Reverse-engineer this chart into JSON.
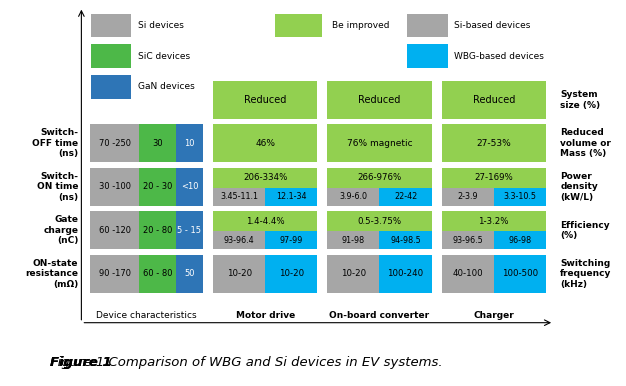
{
  "title_bold": "Figure 1",
  "title_italic": " Comparison of WBG and Si devices in EV systems.",
  "bg_color": "#ffffff",
  "colors": {
    "si_gray": "#a6a6a6",
    "sic_green": "#4db848",
    "gan_blue": "#2e75b6",
    "improved_green": "#92d050",
    "si_based_gray": "#a6a6a6",
    "wbg_blue": "#00b0f0"
  },
  "legend_left": [
    {
      "label": "Si devices",
      "color": "#a6a6a6"
    },
    {
      "label": "SiC devices",
      "color": "#4db848"
    },
    {
      "label": "GaN devices",
      "color": "#2e75b6"
    }
  ],
  "legend_mid": [
    {
      "label": "Be improved",
      "color": "#92d050"
    }
  ],
  "legend_right": [
    {
      "label": "Si-based devices",
      "color": "#a6a6a6"
    },
    {
      "label": "WBG-based devices",
      "color": "#00b0f0"
    }
  ],
  "row_labels": [
    "Switch-\nOFF time\n(ns)",
    "Switch-\nON time\n(ns)",
    "Gate\ncharge\n(nC)",
    "ON-state\nresistance\n(mΩ)"
  ],
  "col_labels": [
    "Device characteristics",
    "Motor drive",
    "On-board converter",
    "Charger"
  ],
  "right_labels": [
    "System\nsize (%)",
    "Reduced\nvolume or\nMass (%)",
    "Power\ndensity\n(kW/L)",
    "Efficiency\n(%)",
    "Switching\nfrequency\n(kHz)"
  ],
  "device_rows": [
    {
      "si": "70 -250",
      "sic": "30",
      "gan": "10"
    },
    {
      "si": "30 -100",
      "sic": "20 - 30",
      "gan": "<10"
    },
    {
      "si": "60 -120",
      "sic": "20 - 80",
      "gan": "5 - 15"
    },
    {
      "si": "90 -170",
      "sic": "60 - 80",
      "gan": "50"
    }
  ],
  "app_cells": [
    {
      "row": 0,
      "motor": {
        "type": "single",
        "text": "46%",
        "color": "#92d050"
      },
      "onboard": {
        "type": "single",
        "text": "76% magnetic",
        "color": "#92d050"
      },
      "charger": {
        "type": "single",
        "text": "27-53%",
        "color": "#92d050"
      }
    },
    {
      "row": 1,
      "motor": {
        "type": "top_split",
        "top_text": "206-334%",
        "top_color": "#92d050",
        "bot_left_text": "3.45-11.1",
        "bot_left_color": "#a6a6a6",
        "bot_right_text": "12.1-34",
        "bot_right_color": "#00b0f0"
      },
      "onboard": {
        "type": "top_split",
        "top_text": "266-976%",
        "top_color": "#92d050",
        "bot_left_text": "3.9-6.0",
        "bot_left_color": "#a6a6a6",
        "bot_right_text": "22-42",
        "bot_right_color": "#00b0f0"
      },
      "charger": {
        "type": "top_split",
        "top_text": "27-169%",
        "top_color": "#92d050",
        "bot_left_text": "2-3.9",
        "bot_left_color": "#a6a6a6",
        "bot_right_text": "3.3-10.5",
        "bot_right_color": "#00b0f0"
      }
    },
    {
      "row": 2,
      "motor": {
        "type": "top_split",
        "top_text": "1.4-4.4%",
        "top_color": "#92d050",
        "bot_left_text": "93-96.4",
        "bot_left_color": "#a6a6a6",
        "bot_right_text": "97-99",
        "bot_right_color": "#00b0f0"
      },
      "onboard": {
        "type": "top_split",
        "top_text": "0.5-3.75%",
        "top_color": "#92d050",
        "bot_left_text": "91-98",
        "bot_left_color": "#a6a6a6",
        "bot_right_text": "94-98.5",
        "bot_right_color": "#00b0f0"
      },
      "charger": {
        "type": "top_split",
        "top_text": "1-3.2%",
        "top_color": "#92d050",
        "bot_left_text": "93-96.5",
        "bot_left_color": "#a6a6a6",
        "bot_right_text": "96-98",
        "bot_right_color": "#00b0f0"
      }
    },
    {
      "row": 3,
      "motor": {
        "type": "halves",
        "left_text": "10-20",
        "left_color": "#a6a6a6",
        "right_text": "10-20",
        "right_color": "#00b0f0"
      },
      "onboard": {
        "type": "halves",
        "left_text": "10-20",
        "left_color": "#a6a6a6",
        "right_text": "100-240",
        "right_color": "#00b0f0"
      },
      "charger": {
        "type": "halves",
        "left_text": "40-100",
        "left_color": "#a6a6a6",
        "right_text": "100-500",
        "right_color": "#00b0f0"
      }
    }
  ]
}
